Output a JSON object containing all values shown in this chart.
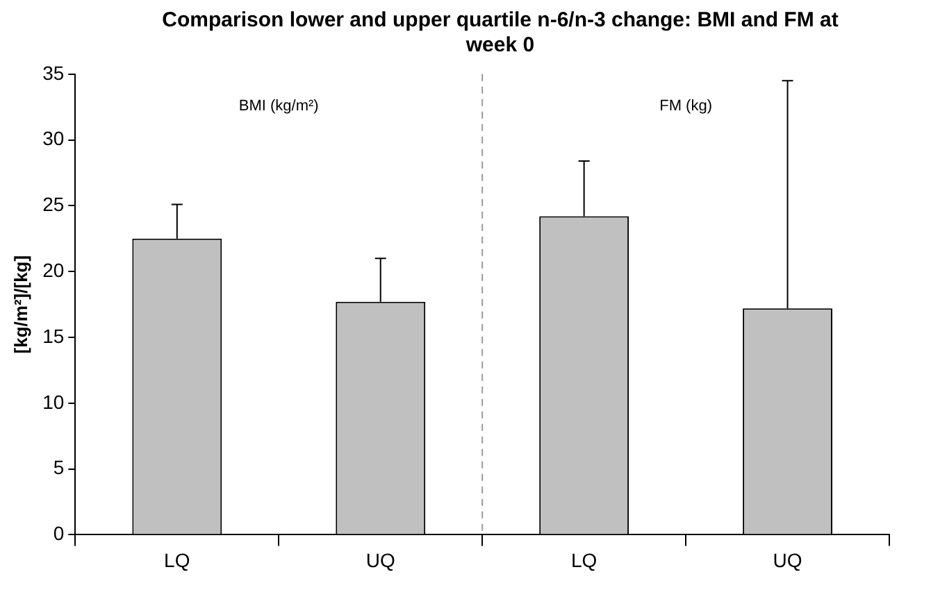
{
  "chart_data": {
    "type": "bar",
    "title": "Comparison lower and upper quartile n-6/n-3 change: BMI and FM at week 0",
    "ylabel": "[kg/m²]/[kg]",
    "categories": [
      "LQ",
      "UQ",
      "LQ",
      "UQ"
    ],
    "values": [
      22.5,
      17.7,
      24.2,
      17.2
    ],
    "errors": [
      [
        22.5,
        25.1
      ],
      [
        17.7,
        21.0
      ],
      [
        24.2,
        28.4
      ],
      [
        17.2,
        34.5
      ]
    ],
    "color": "#c0c0c0",
    "ylim": [
      0,
      35
    ],
    "yticks": [
      0,
      5,
      10,
      15,
      20,
      25,
      30,
      35
    ],
    "grid": false,
    "legend": false,
    "annotations": [
      "BMI (kg/m²)",
      "FM (kg)"
    ]
  }
}
